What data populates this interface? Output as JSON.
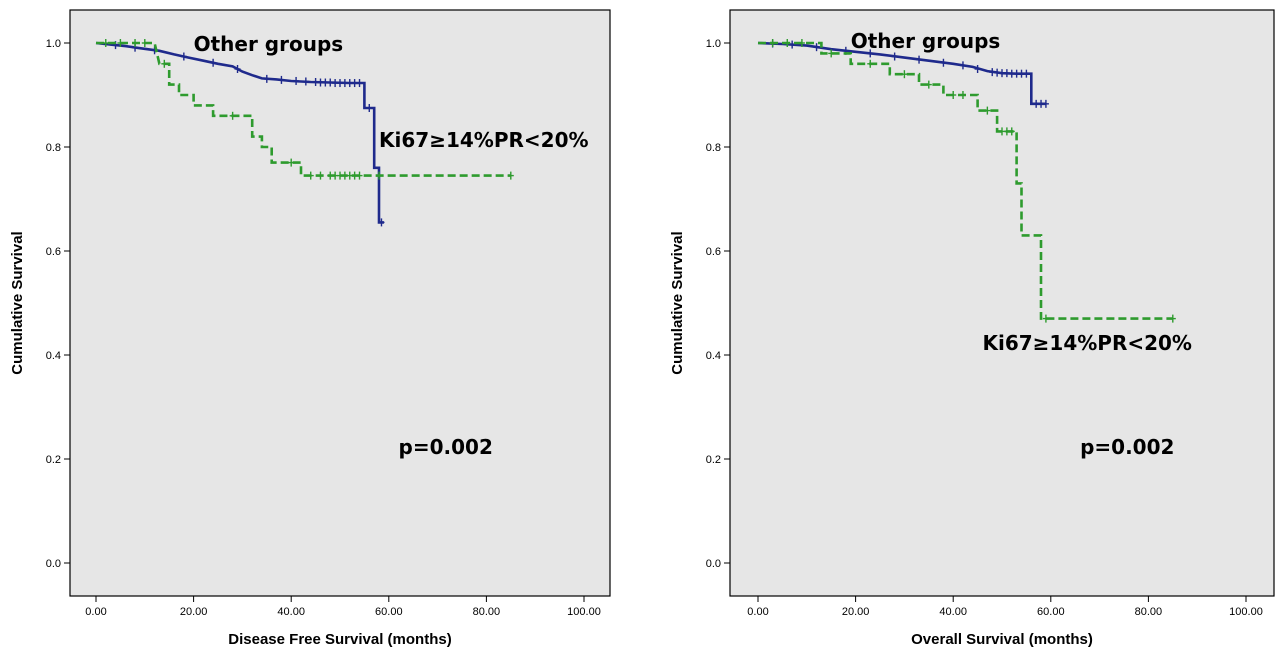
{
  "chart_data": [
    {
      "type": "line",
      "title": "",
      "xlabel": "Disease Free Survival (months)",
      "ylabel": "Cumulative Survival",
      "xlim": [
        0,
        100
      ],
      "ylim": [
        0,
        1
      ],
      "x_ticks": [
        "0.00",
        "20.00",
        "40.00",
        "60.00",
        "80.00",
        "100.00"
      ],
      "y_ticks": [
        "0.0",
        "0.2",
        "0.4",
        "0.6",
        "0.8",
        "1.0"
      ],
      "grid": false,
      "annotations": [
        {
          "text": "Other groups",
          "x": 20,
          "y": 0.985,
          "size": 20
        },
        {
          "text": "Ki67≥14%PR<20%",
          "x": 58,
          "y": 0.8,
          "size": 20
        },
        {
          "text": "p=0.002",
          "x": 62,
          "y": 0.21,
          "size": 20
        }
      ],
      "series": [
        {
          "color": "#1f2a8c",
          "dash": false,
          "points": [
            [
              0,
              1.0
            ],
            [
              3,
              0.997
            ],
            [
              6,
              0.994
            ],
            [
              9,
              0.99
            ],
            [
              13,
              0.985
            ],
            [
              16,
              0.978
            ],
            [
              19,
              0.972
            ],
            [
              22,
              0.966
            ],
            [
              25,
              0.96
            ],
            [
              28,
              0.955
            ],
            [
              30,
              0.945
            ],
            [
              32,
              0.938
            ],
            [
              34,
              0.932
            ],
            [
              37,
              0.93
            ],
            [
              40,
              0.927
            ],
            [
              44,
              0.925
            ],
            [
              48,
              0.924
            ],
            [
              52,
              0.923
            ],
            [
              55,
              0.923
            ],
            [
              55,
              0.875
            ],
            [
              57,
              0.875
            ],
            [
              57,
              0.76
            ],
            [
              58,
              0.76
            ],
            [
              58,
              0.655
            ],
            [
              59,
              0.655
            ]
          ],
          "censors": [
            [
              4,
              0.996
            ],
            [
              8,
              0.991
            ],
            [
              12,
              0.986
            ],
            [
              18,
              0.974
            ],
            [
              24,
              0.962
            ],
            [
              29,
              0.95
            ],
            [
              35,
              0.931
            ],
            [
              38,
              0.929
            ],
            [
              41,
              0.927
            ],
            [
              43,
              0.926
            ],
            [
              45,
              0.925
            ],
            [
              46,
              0.924
            ],
            [
              47,
              0.924
            ],
            [
              48,
              0.924
            ],
            [
              49,
              0.923
            ],
            [
              50,
              0.923
            ],
            [
              51,
              0.923
            ],
            [
              52,
              0.923
            ],
            [
              53,
              0.923
            ],
            [
              54,
              0.923
            ],
            [
              56,
              0.875
            ],
            [
              58.5,
              0.655
            ]
          ]
        },
        {
          "color": "#2e9b2e",
          "dash": true,
          "points": [
            [
              0,
              1.0
            ],
            [
              12,
              1.0
            ],
            [
              13,
              0.96
            ],
            [
              15,
              0.96
            ],
            [
              15,
              0.92
            ],
            [
              17,
              0.92
            ],
            [
              17,
              0.9
            ],
            [
              20,
              0.9
            ],
            [
              20,
              0.88
            ],
            [
              24,
              0.88
            ],
            [
              24,
              0.86
            ],
            [
              32,
              0.86
            ],
            [
              32,
              0.82
            ],
            [
              34,
              0.82
            ],
            [
              34,
              0.8
            ],
            [
              36,
              0.8
            ],
            [
              36,
              0.77
            ],
            [
              42,
              0.77
            ],
            [
              42,
              0.745
            ],
            [
              85,
              0.745
            ]
          ],
          "censors": [
            [
              2,
              1.0
            ],
            [
              5,
              1.0
            ],
            [
              8,
              1.0
            ],
            [
              10,
              1.0
            ],
            [
              14,
              0.96
            ],
            [
              28,
              0.86
            ],
            [
              40,
              0.77
            ],
            [
              44,
              0.745
            ],
            [
              46,
              0.745
            ],
            [
              48,
              0.745
            ],
            [
              49,
              0.745
            ],
            [
              50,
              0.745
            ],
            [
              51,
              0.745
            ],
            [
              52,
              0.745
            ],
            [
              53,
              0.745
            ],
            [
              54,
              0.745
            ],
            [
              58,
              0.745
            ],
            [
              85,
              0.745
            ]
          ]
        }
      ]
    },
    {
      "type": "line",
      "title": "",
      "xlabel": "Overall Survival (months)",
      "ylabel": "Cumulative Survival",
      "xlim": [
        0,
        100
      ],
      "ylim": [
        0,
        1
      ],
      "x_ticks": [
        "0.00",
        "20.00",
        "40.00",
        "60.00",
        "80.00",
        "100.00"
      ],
      "y_ticks": [
        "0.0",
        "0.2",
        "0.4",
        "0.6",
        "0.8",
        "1.0"
      ],
      "grid": false,
      "annotations": [
        {
          "text": "Other groups",
          "x": 19,
          "y": 0.99,
          "size": 20
        },
        {
          "text": "Ki67≥14%PR<20%",
          "x": 46,
          "y": 0.41,
          "size": 20
        },
        {
          "text": "p=0.002",
          "x": 66,
          "y": 0.21,
          "size": 20
        }
      ],
      "series": [
        {
          "color": "#1f2a8c",
          "dash": false,
          "points": [
            [
              0,
              1.0
            ],
            [
              5,
              0.998
            ],
            [
              10,
              0.995
            ],
            [
              15,
              0.988
            ],
            [
              20,
              0.983
            ],
            [
              25,
              0.978
            ],
            [
              30,
              0.972
            ],
            [
              35,
              0.966
            ],
            [
              40,
              0.96
            ],
            [
              44,
              0.954
            ],
            [
              47,
              0.946
            ],
            [
              50,
              0.942
            ],
            [
              53,
              0.941
            ],
            [
              56,
              0.941
            ],
            [
              56,
              0.883
            ],
            [
              59,
              0.883
            ]
          ],
          "censors": [
            [
              3,
              0.999
            ],
            [
              7,
              0.997
            ],
            [
              12,
              0.992
            ],
            [
              18,
              0.985
            ],
            [
              23,
              0.98
            ],
            [
              28,
              0.974
            ],
            [
              33,
              0.968
            ],
            [
              38,
              0.962
            ],
            [
              42,
              0.957
            ],
            [
              45,
              0.95
            ],
            [
              48,
              0.944
            ],
            [
              49,
              0.943
            ],
            [
              50,
              0.942
            ],
            [
              51,
              0.942
            ],
            [
              52,
              0.941
            ],
            [
              53,
              0.941
            ],
            [
              54,
              0.941
            ],
            [
              55,
              0.941
            ],
            [
              57,
              0.883
            ],
            [
              58,
              0.883
            ],
            [
              59,
              0.883
            ]
          ]
        },
        {
          "color": "#2e9b2e",
          "dash": true,
          "points": [
            [
              0,
              1.0
            ],
            [
              13,
              1.0
            ],
            [
              13,
              0.98
            ],
            [
              19,
              0.98
            ],
            [
              19,
              0.96
            ],
            [
              27,
              0.96
            ],
            [
              27,
              0.94
            ],
            [
              33,
              0.94
            ],
            [
              33,
              0.92
            ],
            [
              38,
              0.92
            ],
            [
              38,
              0.9
            ],
            [
              45,
              0.9
            ],
            [
              45,
              0.87
            ],
            [
              49,
              0.87
            ],
            [
              49,
              0.83
            ],
            [
              53,
              0.83
            ],
            [
              53,
              0.73
            ],
            [
              54,
              0.73
            ],
            [
              54,
              0.63
            ],
            [
              58,
              0.63
            ],
            [
              58,
              0.47
            ],
            [
              85,
              0.47
            ]
          ],
          "censors": [
            [
              3,
              1.0
            ],
            [
              6,
              1.0
            ],
            [
              9,
              1.0
            ],
            [
              15,
              0.98
            ],
            [
              23,
              0.96
            ],
            [
              30,
              0.94
            ],
            [
              35,
              0.92
            ],
            [
              40,
              0.9
            ],
            [
              42,
              0.9
            ],
            [
              47,
              0.87
            ],
            [
              50,
              0.83
            ],
            [
              51,
              0.83
            ],
            [
              52,
              0.83
            ],
            [
              59,
              0.47
            ],
            [
              85,
              0.47
            ]
          ]
        }
      ]
    }
  ]
}
